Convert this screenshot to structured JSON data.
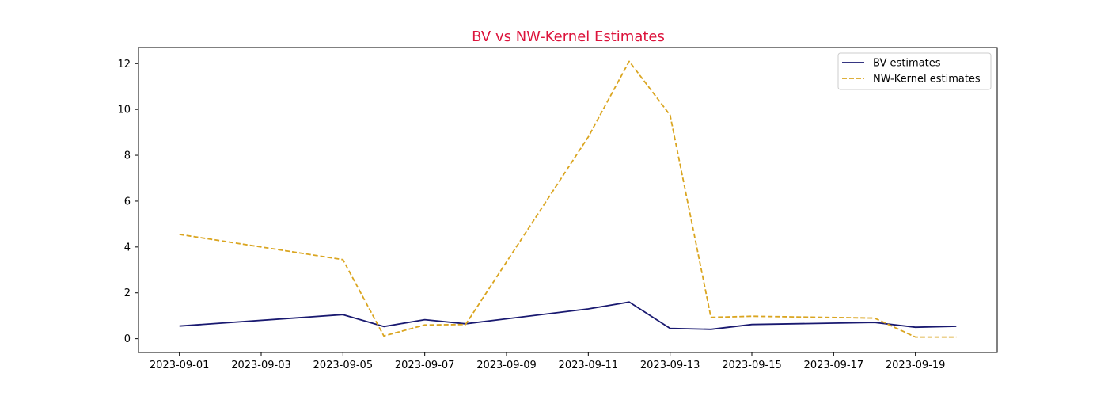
{
  "chart_data": {
    "type": "line",
    "title": "BV vs NW-Kernel Estimates",
    "title_color": "#dc143c",
    "xlabel": "",
    "ylabel": "",
    "x_type": "date",
    "xlim": [
      "2023-08-31",
      "2023-09-21"
    ],
    "ylim": [
      -0.6,
      12.7
    ],
    "x_ticks": [
      "2023-09-01",
      "2023-09-03",
      "2023-09-05",
      "2023-09-07",
      "2023-09-09",
      "2023-09-11",
      "2023-09-13",
      "2023-09-15",
      "2023-09-17",
      "2023-09-19"
    ],
    "y_ticks": [
      0,
      2,
      4,
      6,
      8,
      10,
      12
    ],
    "grid": false,
    "legend_position": "top-right",
    "x": [
      "2023-09-01",
      "2023-09-05",
      "2023-09-06",
      "2023-09-07",
      "2023-09-08",
      "2023-09-11",
      "2023-09-12",
      "2023-09-13",
      "2023-09-14",
      "2023-09-15",
      "2023-09-18",
      "2023-09-19",
      "2023-09-20"
    ],
    "series": [
      {
        "name": "BV estimates",
        "color": "#191970",
        "style": "solid",
        "values": [
          0.55,
          1.05,
          0.53,
          0.83,
          0.65,
          1.3,
          1.6,
          0.45,
          0.41,
          0.62,
          0.71,
          0.5,
          0.54
        ]
      },
      {
        "name": "NW-Kernel estimates",
        "color": "#daa520",
        "style": "dashed",
        "values": [
          4.55,
          3.45,
          0.12,
          0.6,
          0.62,
          8.8,
          12.1,
          9.75,
          0.93,
          0.98,
          0.9,
          0.07,
          0.07
        ]
      }
    ]
  }
}
